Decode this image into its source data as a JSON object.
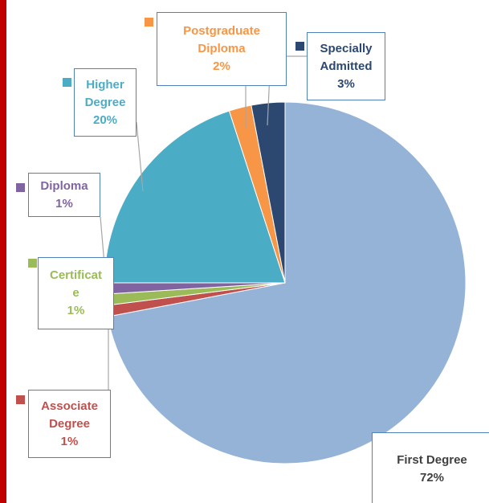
{
  "chart_data": {
    "type": "pie",
    "categories": [
      "First Degree",
      "Associate Degree",
      "Certificate",
      "Diploma",
      "Higher Degree",
      "Postgraduate Diploma",
      "Specially Admitted"
    ],
    "values": [
      72,
      1,
      1,
      1,
      20,
      2,
      3
    ],
    "value_labels": [
      "72%",
      "1%",
      "1%",
      "1%",
      "20%",
      "2%",
      "3%"
    ],
    "colors": [
      "#95b3d7",
      "#c0504d",
      "#9bbb59",
      "#8064a2",
      "#4bacc6",
      "#f79646",
      "#2c4770"
    ]
  }
}
